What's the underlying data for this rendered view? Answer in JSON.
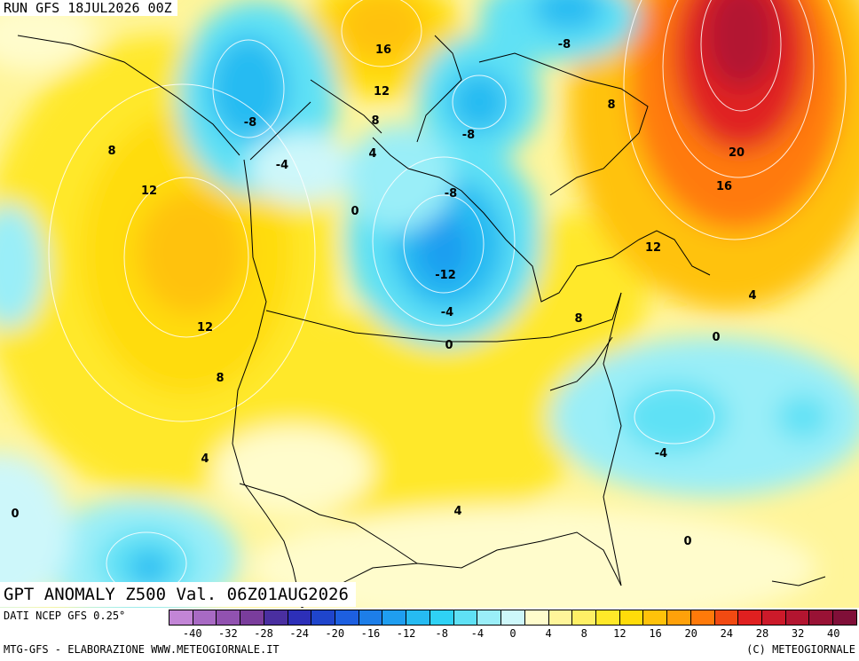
{
  "header": {
    "run_title": "RUN GFS 18JUL2026 00Z",
    "valid_title": "GPT ANOMALY Z500 Val. 06Z01AUG2026"
  },
  "footer": {
    "source": "DATI NCEP GFS 0.25°",
    "credit": "MTG-GFS - ELABORAZIONE WWW.METEOGIORNALE.IT",
    "copyright": "(C) METEOGIORNALE"
  },
  "legend": {
    "colors": [
      "#c285d6",
      "#a86ac4",
      "#9152b0",
      "#7a3d9c",
      "#4a2fa0",
      "#2d2fb8",
      "#1f45cc",
      "#1d5fe0",
      "#1d7ee8",
      "#1f9ef0",
      "#26bbf2",
      "#2fd2f5",
      "#5fe1f5",
      "#9aeef8",
      "#cdf7fa",
      "#fffccc",
      "#fff59a",
      "#fff066",
      "#ffe829",
      "#ffdc0a",
      "#ffc20a",
      "#ffa10a",
      "#ff7a0a",
      "#f24a12",
      "#e02020",
      "#cc1a2a",
      "#b31530",
      "#991235",
      "#800f38"
    ],
    "ticks": [
      "-40",
      "-32",
      "-28",
      "-24",
      "-20",
      "-16",
      "-12",
      "-8",
      "-4",
      "0",
      "4",
      "8",
      "12",
      "16",
      "20",
      "24",
      "28",
      "32",
      "40"
    ]
  },
  "map": {
    "contour_labels": [
      {
        "text": "16",
        "level": 16
      },
      {
        "text": "-8",
        "level": -8
      },
      {
        "text": "8",
        "level": 8
      },
      {
        "text": "12",
        "level": 12
      },
      {
        "text": "-8",
        "level": -8
      },
      {
        "text": "8",
        "level": 8
      },
      {
        "text": "-8",
        "level": -8
      },
      {
        "text": "4",
        "level": 4
      },
      {
        "text": "-4",
        "level": -4
      },
      {
        "text": "8",
        "level": 8
      },
      {
        "text": "12",
        "level": 12
      },
      {
        "text": "20",
        "level": 20
      },
      {
        "text": "-8",
        "level": -8
      },
      {
        "text": "16",
        "level": 16
      },
      {
        "text": "0",
        "level": 0
      },
      {
        "text": "12",
        "level": 12
      },
      {
        "text": "-12",
        "level": -12
      },
      {
        "text": "4",
        "level": 4
      },
      {
        "text": "-4",
        "level": -4
      },
      {
        "text": "12",
        "level": 12
      },
      {
        "text": "8",
        "level": 8
      },
      {
        "text": "0",
        "level": 0
      },
      {
        "text": "0",
        "level": 0
      },
      {
        "text": "8",
        "level": 8
      },
      {
        "text": "-4",
        "level": -4
      },
      {
        "text": "4",
        "level": 4
      },
      {
        "text": "0",
        "level": 0
      },
      {
        "text": "4",
        "level": 4
      },
      {
        "text": "0",
        "level": 0
      }
    ]
  }
}
